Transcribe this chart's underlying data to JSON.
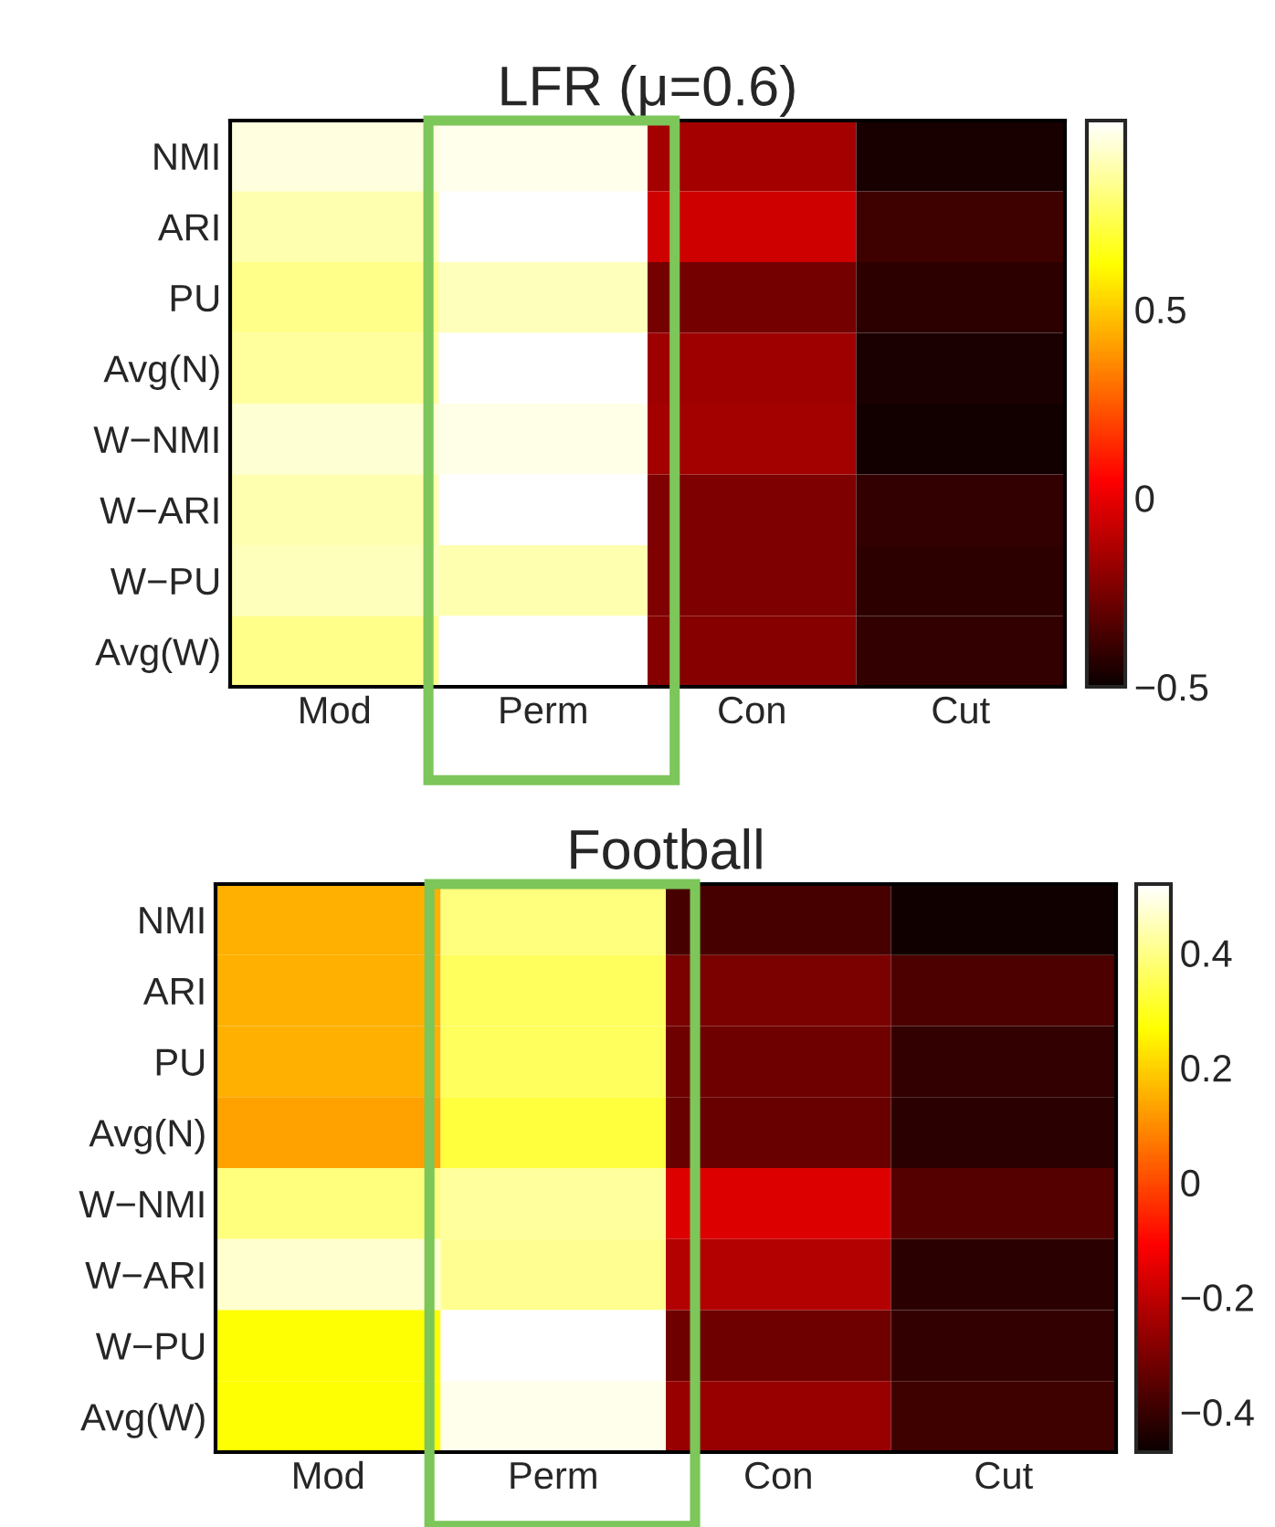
{
  "chart_data": [
    {
      "type": "heatmap",
      "title": "LFR (μ=0.6)",
      "categories": [
        "Mod",
        "Perm",
        "Con",
        "Cut"
      ],
      "y_categories": [
        "NMI",
        "ARI",
        "PU",
        "Avg(N)",
        "W−NMI",
        "W−ARI",
        "W−PU",
        "Avg(W)"
      ],
      "cells": [
        [
          0.95,
          0.97,
          -0.15,
          -0.47
        ],
        [
          0.88,
          1.0,
          -0.06,
          -0.38
        ],
        [
          0.82,
          0.9,
          -0.26,
          -0.42
        ],
        [
          0.85,
          1.0,
          -0.17,
          -0.46
        ],
        [
          0.93,
          0.96,
          -0.16,
          -0.48
        ],
        [
          0.88,
          1.0,
          -0.24,
          -0.41
        ],
        [
          0.9,
          0.88,
          -0.24,
          -0.42
        ],
        [
          0.82,
          1.0,
          -0.22,
          -0.41
        ]
      ],
      "clim": [
        -0.5,
        1.0
      ],
      "cticks": [
        {
          "value": -0.5,
          "label": "−0.5"
        },
        0,
        0.5
      ]
    },
    {
      "type": "heatmap",
      "title": "Football",
      "categories": [
        "Mod",
        "Perm",
        "Con",
        "Cut"
      ],
      "y_categories": [
        "NMI",
        "ARI",
        "PU",
        "Avg(N)",
        "W−NMI",
        "W−ARI",
        "W−PU",
        "Avg(W)"
      ],
      "cells": [
        [
          0.15,
          0.39,
          -0.38,
          -0.46
        ],
        [
          0.15,
          0.36,
          -0.3,
          -0.37
        ],
        [
          0.15,
          0.36,
          -0.32,
          -0.41
        ],
        [
          0.13,
          0.33,
          -0.33,
          -0.42
        ],
        [
          0.39,
          0.42,
          -0.16,
          -0.36
        ],
        [
          0.47,
          0.41,
          -0.22,
          -0.42
        ],
        [
          0.27,
          0.52,
          -0.32,
          -0.41
        ],
        [
          0.27,
          0.5,
          -0.26,
          -0.39
        ]
      ],
      "clim": [
        -0.47,
        0.52
      ],
      "cticks": [
        {
          "value": -0.4,
          "label": "−0.4"
        },
        {
          "value": -0.2,
          "label": "−0.2"
        },
        0,
        0.2,
        0.4
      ]
    }
  ]
}
